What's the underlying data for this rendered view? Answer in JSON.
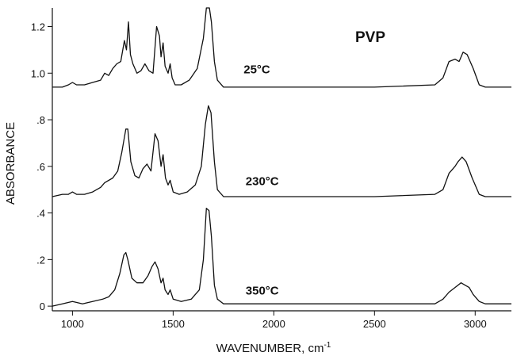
{
  "chart_data": {
    "type": "line",
    "title": "PVP",
    "xlabel": "WAVENUMBER, cm",
    "xlabel_superscript": "-1",
    "ylabel": "ABSORBANCE",
    "xlim": [
      900,
      3180
    ],
    "ylim": [
      -0.02,
      1.28
    ],
    "x_ticks": [
      {
        "value": 1000,
        "label": "1000"
      },
      {
        "value": 1500,
        "label": "1500"
      },
      {
        "value": 2000,
        "label": "2000"
      },
      {
        "value": 2500,
        "label": "2500"
      },
      {
        "value": 3000,
        "label": "3000"
      }
    ],
    "y_ticks": [
      {
        "value": 0.0,
        "label": "0"
      },
      {
        "value": 0.2,
        "label": ".2"
      },
      {
        "value": 0.4,
        "label": ".4"
      },
      {
        "value": 0.6,
        "label": ".6"
      },
      {
        "value": 0.8,
        "label": ".8"
      },
      {
        "value": 1.0,
        "label": "1.0"
      },
      {
        "value": 1.2,
        "label": "1.2"
      }
    ],
    "grid": false,
    "line_color": "#111111",
    "series": [
      {
        "name": "25°C",
        "points": [
          [
            900,
            0.94
          ],
          [
            950,
            0.94
          ],
          [
            980,
            0.95
          ],
          [
            1000,
            0.96
          ],
          [
            1020,
            0.95
          ],
          [
            1060,
            0.95
          ],
          [
            1100,
            0.96
          ],
          [
            1140,
            0.97
          ],
          [
            1160,
            1.0
          ],
          [
            1180,
            0.99
          ],
          [
            1200,
            1.02
          ],
          [
            1220,
            1.04
          ],
          [
            1240,
            1.05
          ],
          [
            1258,
            1.14
          ],
          [
            1268,
            1.1
          ],
          [
            1278,
            1.22
          ],
          [
            1288,
            1.08
          ],
          [
            1300,
            1.04
          ],
          [
            1320,
            1.0
          ],
          [
            1340,
            1.01
          ],
          [
            1360,
            1.04
          ],
          [
            1380,
            1.01
          ],
          [
            1400,
            1.0
          ],
          [
            1418,
            1.2
          ],
          [
            1432,
            1.16
          ],
          [
            1440,
            1.07
          ],
          [
            1450,
            1.13
          ],
          [
            1460,
            1.03
          ],
          [
            1475,
            1.0
          ],
          [
            1485,
            1.04
          ],
          [
            1495,
            0.98
          ],
          [
            1510,
            0.95
          ],
          [
            1540,
            0.95
          ],
          [
            1580,
            0.97
          ],
          [
            1620,
            1.02
          ],
          [
            1650,
            1.15
          ],
          [
            1665,
            1.28
          ],
          [
            1680,
            1.28
          ],
          [
            1690,
            1.22
          ],
          [
            1705,
            1.05
          ],
          [
            1720,
            0.97
          ],
          [
            1750,
            0.94
          ],
          [
            2000,
            0.94
          ],
          [
            2500,
            0.94
          ],
          [
            2800,
            0.95
          ],
          [
            2840,
            0.98
          ],
          [
            2870,
            1.05
          ],
          [
            2900,
            1.06
          ],
          [
            2920,
            1.05
          ],
          [
            2940,
            1.09
          ],
          [
            2960,
            1.08
          ],
          [
            2990,
            1.02
          ],
          [
            3020,
            0.95
          ],
          [
            3050,
            0.94
          ],
          [
            3180,
            0.94
          ]
        ]
      },
      {
        "name": "230°C",
        "points": [
          [
            900,
            0.47
          ],
          [
            950,
            0.48
          ],
          [
            980,
            0.48
          ],
          [
            1000,
            0.49
          ],
          [
            1020,
            0.48
          ],
          [
            1060,
            0.48
          ],
          [
            1100,
            0.49
          ],
          [
            1140,
            0.51
          ],
          [
            1160,
            0.53
          ],
          [
            1200,
            0.55
          ],
          [
            1225,
            0.58
          ],
          [
            1245,
            0.66
          ],
          [
            1265,
            0.76
          ],
          [
            1275,
            0.76
          ],
          [
            1290,
            0.62
          ],
          [
            1310,
            0.56
          ],
          [
            1330,
            0.55
          ],
          [
            1350,
            0.59
          ],
          [
            1370,
            0.61
          ],
          [
            1390,
            0.58
          ],
          [
            1410,
            0.74
          ],
          [
            1425,
            0.71
          ],
          [
            1440,
            0.6
          ],
          [
            1450,
            0.65
          ],
          [
            1462,
            0.55
          ],
          [
            1475,
            0.52
          ],
          [
            1485,
            0.54
          ],
          [
            1500,
            0.49
          ],
          [
            1530,
            0.48
          ],
          [
            1570,
            0.49
          ],
          [
            1610,
            0.52
          ],
          [
            1640,
            0.6
          ],
          [
            1660,
            0.78
          ],
          [
            1675,
            0.86
          ],
          [
            1688,
            0.83
          ],
          [
            1705,
            0.62
          ],
          [
            1720,
            0.5
          ],
          [
            1750,
            0.47
          ],
          [
            2000,
            0.47
          ],
          [
            2500,
            0.47
          ],
          [
            2800,
            0.48
          ],
          [
            2840,
            0.5
          ],
          [
            2870,
            0.57
          ],
          [
            2900,
            0.6
          ],
          [
            2915,
            0.62
          ],
          [
            2935,
            0.64
          ],
          [
            2955,
            0.62
          ],
          [
            2985,
            0.55
          ],
          [
            3020,
            0.48
          ],
          [
            3050,
            0.47
          ],
          [
            3180,
            0.47
          ]
        ]
      },
      {
        "name": "350°C",
        "points": [
          [
            900,
            0.0
          ],
          [
            950,
            0.01
          ],
          [
            1000,
            0.02
          ],
          [
            1050,
            0.01
          ],
          [
            1100,
            0.02
          ],
          [
            1150,
            0.03
          ],
          [
            1180,
            0.04
          ],
          [
            1210,
            0.07
          ],
          [
            1235,
            0.14
          ],
          [
            1255,
            0.22
          ],
          [
            1265,
            0.23
          ],
          [
            1275,
            0.2
          ],
          [
            1295,
            0.12
          ],
          [
            1320,
            0.1
          ],
          [
            1350,
            0.1
          ],
          [
            1375,
            0.13
          ],
          [
            1395,
            0.17
          ],
          [
            1410,
            0.19
          ],
          [
            1425,
            0.16
          ],
          [
            1440,
            0.1
          ],
          [
            1450,
            0.12
          ],
          [
            1460,
            0.07
          ],
          [
            1475,
            0.05
          ],
          [
            1485,
            0.07
          ],
          [
            1500,
            0.03
          ],
          [
            1540,
            0.02
          ],
          [
            1590,
            0.03
          ],
          [
            1630,
            0.07
          ],
          [
            1650,
            0.2
          ],
          [
            1665,
            0.42
          ],
          [
            1678,
            0.41
          ],
          [
            1690,
            0.3
          ],
          [
            1705,
            0.09
          ],
          [
            1720,
            0.03
          ],
          [
            1750,
            0.01
          ],
          [
            2000,
            0.01
          ],
          [
            2500,
            0.01
          ],
          [
            2800,
            0.01
          ],
          [
            2840,
            0.03
          ],
          [
            2870,
            0.06
          ],
          [
            2900,
            0.08
          ],
          [
            2930,
            0.1
          ],
          [
            2950,
            0.09
          ],
          [
            2970,
            0.08
          ],
          [
            2990,
            0.05
          ],
          [
            3020,
            0.02
          ],
          [
            3050,
            0.01
          ],
          [
            3180,
            0.01
          ]
        ]
      }
    ]
  }
}
